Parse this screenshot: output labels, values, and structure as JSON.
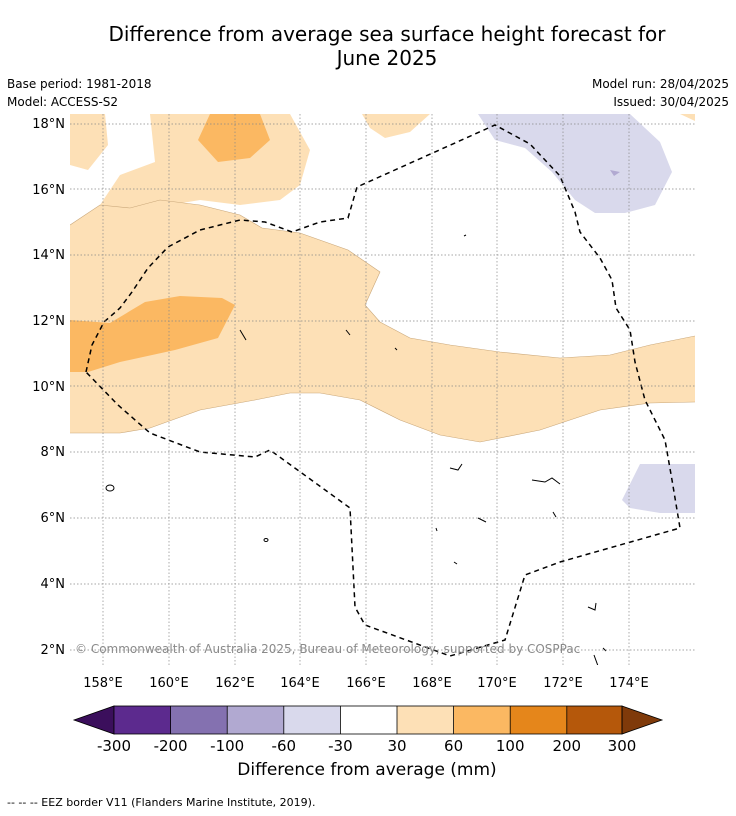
{
  "title": "Difference from average sea surface height forecast for June 2025",
  "title_lines": [
    "Difference from average sea surface height forecast for",
    "June 2025"
  ],
  "meta": {
    "base_period": "Base period: 1981-2018",
    "model": "Model: ACCESS-S2",
    "model_run": "Model run: 28/04/2025",
    "issued": "Issued: 30/04/2025"
  },
  "map": {
    "lat_labels": [
      "18°N",
      "16°N",
      "14°N",
      "12°N",
      "10°N",
      "8°N",
      "6°N",
      "4°N",
      "2°N"
    ],
    "lon_labels": [
      "158°E",
      "160°E",
      "162°E",
      "164°E",
      "166°E",
      "168°E",
      "170°E",
      "172°E",
      "174°E"
    ],
    "copyright": "© Commonwealth of Australia 2025, Bureau of Meteorology, supported by COSPPac",
    "colors": {
      "neg_300": "#3b0f5c",
      "neg_200": "#5c2a8e",
      "neg_100": "#8471b0",
      "neg_60": "#b1a9d1",
      "neg_30": "#d9d9ec",
      "neutral": "#ffffff",
      "pos_30": "#fde0b6",
      "pos_60": "#fbb862",
      "pos_100": "#e5861b",
      "pos_200": "#b5580b",
      "pos_300": "#7f3a0a"
    }
  },
  "colorbar": {
    "ticks": [
      "-300",
      "-200",
      "-100",
      "-60",
      "-30",
      "30",
      "60",
      "100",
      "200",
      "300"
    ],
    "label": "Difference from average (mm)"
  },
  "footnote": "--  --  -- EEZ border V11 (Flanders Marine Institute, 2019)."
}
